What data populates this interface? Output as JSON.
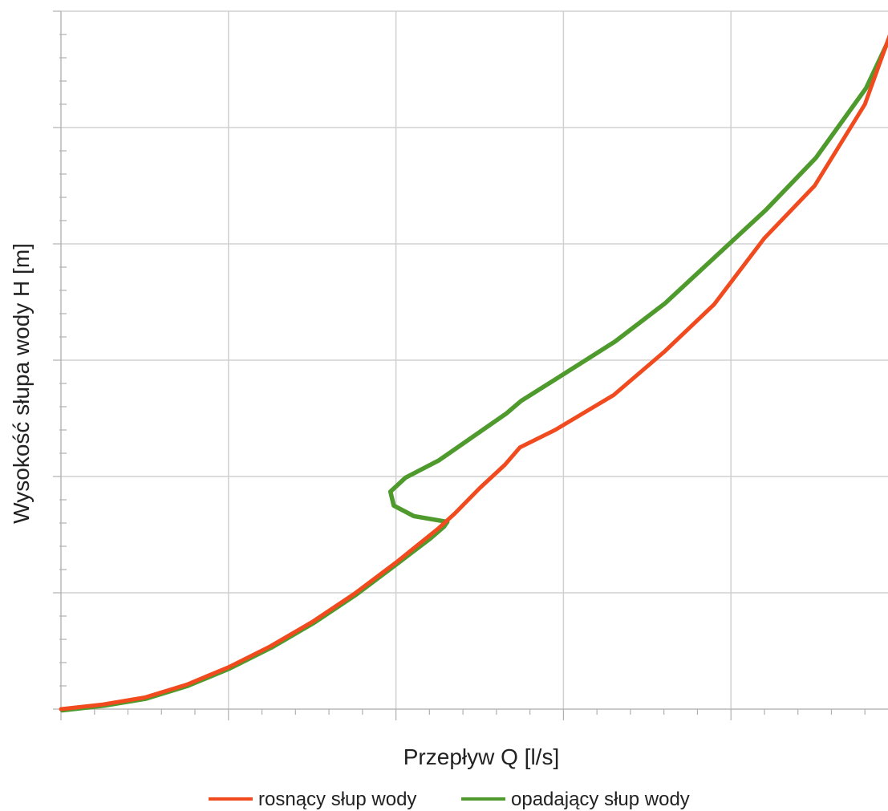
{
  "chart_data": {
    "type": "line",
    "xlabel": "Przepływ Q [l/s]",
    "ylabel": "Wysokość słupa wody H [m]",
    "tick_labels_visible": false,
    "grid": true,
    "legend_position": "bottom-center",
    "xlim": [
      0,
      5
    ],
    "ylim": [
      0,
      6
    ],
    "x_major_divisions": 5,
    "y_major_divisions": 6,
    "x_minor_per_major": 5,
    "y_minor_per_major": 5,
    "series": [
      {
        "name": "rosnący słup wody",
        "color": "#f04a1e",
        "x": [
          0,
          0.25,
          0.5,
          0.75,
          1.0,
          1.25,
          1.5,
          1.75,
          2.0,
          2.25,
          2.35,
          2.5,
          2.65,
          2.74,
          2.95,
          3.3,
          3.6,
          3.9,
          4.2,
          4.5,
          4.8,
          5.0
        ],
        "y": [
          0,
          0.04,
          0.1,
          0.21,
          0.36,
          0.54,
          0.75,
          0.99,
          1.26,
          1.55,
          1.68,
          1.9,
          2.1,
          2.25,
          2.4,
          2.7,
          3.07,
          3.48,
          4.05,
          4.5,
          5.2,
          6.0
        ]
      },
      {
        "name": "opadający słup wody",
        "color": "#4e9a2c",
        "x": [
          0,
          0.25,
          0.5,
          0.75,
          1.0,
          1.25,
          1.5,
          1.75,
          2.0,
          2.2,
          2.28,
          2.3,
          2.1,
          1.98,
          1.96,
          2.05,
          2.25,
          2.35,
          2.5,
          2.65,
          2.74,
          2.95,
          3.3,
          3.6,
          3.9,
          4.2,
          4.5,
          4.8,
          5.0
        ],
        "y": [
          0,
          0.04,
          0.1,
          0.21,
          0.36,
          0.54,
          0.75,
          0.99,
          1.26,
          1.48,
          1.58,
          1.62,
          1.67,
          1.76,
          1.88,
          2.0,
          2.15,
          2.25,
          2.4,
          2.55,
          2.66,
          2.85,
          3.17,
          3.5,
          3.9,
          4.3,
          4.75,
          5.35,
          5.96
        ]
      }
    ]
  }
}
